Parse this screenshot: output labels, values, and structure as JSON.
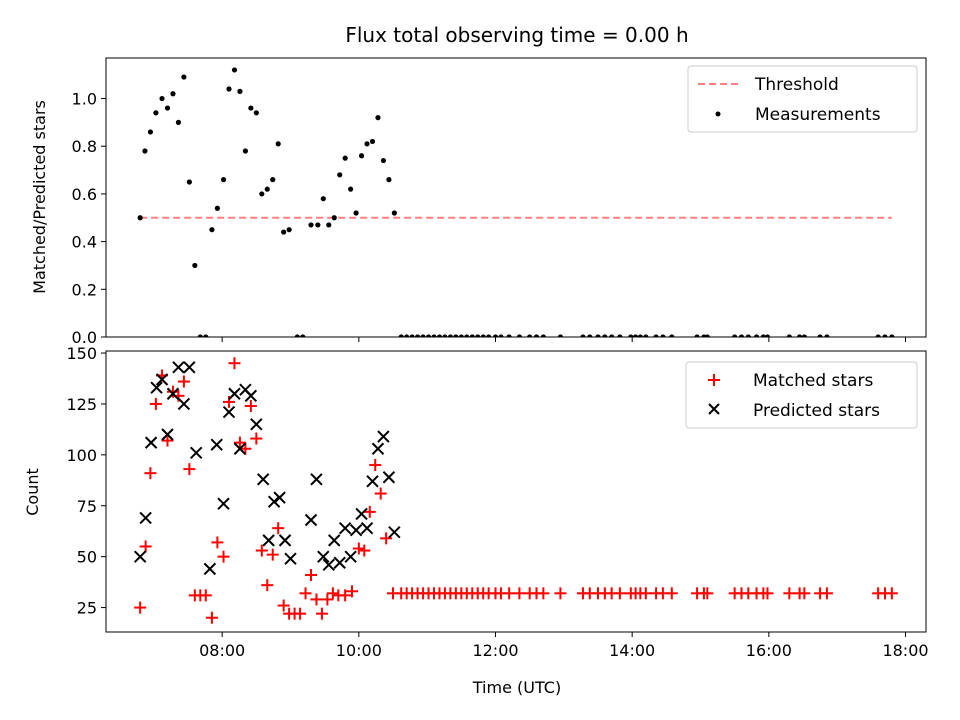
{
  "chart_data": [
    {
      "type": "scatter",
      "title": "Flux total observing time = 0.00 h",
      "ylabel": "Matched/Predicted stars",
      "ylim": [
        0.0,
        1.17
      ],
      "xlim_hours": [
        6.3,
        18.3
      ],
      "yticks": [
        0.0,
        0.2,
        0.4,
        0.6,
        0.8,
        1.0
      ],
      "ytick_labels": [
        "0.0",
        "0.2",
        "0.4",
        "0.6",
        "0.8",
        "1.0"
      ],
      "threshold": {
        "name": "Threshold",
        "y": 0.5,
        "x_range": [
          6.8,
          17.8
        ],
        "color": "#ff7f7f",
        "style": "dashed"
      },
      "series": [
        {
          "name": "Measurements",
          "color": "#000000",
          "marker": "dot",
          "points": [
            [
              6.8,
              0.5
            ],
            [
              6.87,
              0.78
            ],
            [
              6.95,
              0.86
            ],
            [
              7.03,
              0.94
            ],
            [
              7.12,
              1.0
            ],
            [
              7.2,
              0.96
            ],
            [
              7.28,
              1.02
            ],
            [
              7.36,
              0.9
            ],
            [
              7.44,
              1.09
            ],
            [
              7.52,
              0.65
            ],
            [
              7.6,
              0.3
            ],
            [
              7.68,
              0.0
            ],
            [
              7.76,
              0.0
            ],
            [
              7.85,
              0.45
            ],
            [
              7.93,
              0.54
            ],
            [
              8.02,
              0.66
            ],
            [
              8.1,
              1.04
            ],
            [
              8.18,
              1.12
            ],
            [
              8.26,
              1.03
            ],
            [
              8.34,
              0.78
            ],
            [
              8.42,
              0.96
            ],
            [
              8.5,
              0.94
            ],
            [
              8.58,
              0.6
            ],
            [
              8.66,
              0.62
            ],
            [
              8.74,
              0.66
            ],
            [
              8.82,
              0.81
            ],
            [
              8.9,
              0.44
            ],
            [
              8.98,
              0.45
            ],
            [
              9.1,
              0.0
            ],
            [
              9.18,
              0.0
            ],
            [
              9.3,
              0.47
            ],
            [
              9.4,
              0.47
            ],
            [
              9.48,
              0.58
            ],
            [
              9.56,
              0.47
            ],
            [
              9.64,
              0.5
            ],
            [
              9.72,
              0.68
            ],
            [
              9.8,
              0.75
            ],
            [
              9.88,
              0.62
            ],
            [
              9.96,
              0.52
            ],
            [
              10.04,
              0.76
            ],
            [
              10.12,
              0.81
            ],
            [
              10.2,
              0.82
            ],
            [
              10.28,
              0.92
            ],
            [
              10.36,
              0.74
            ],
            [
              10.44,
              0.66
            ],
            [
              10.52,
              0.52
            ],
            [
              10.62,
              0.0
            ],
            [
              10.7,
              0.0
            ],
            [
              10.78,
              0.0
            ],
            [
              10.86,
              0.0
            ],
            [
              10.94,
              0.0
            ],
            [
              11.02,
              0.0
            ],
            [
              11.1,
              0.0
            ],
            [
              11.18,
              0.0
            ],
            [
              11.26,
              0.0
            ],
            [
              11.34,
              0.0
            ],
            [
              11.42,
              0.0
            ],
            [
              11.5,
              0.0
            ],
            [
              11.58,
              0.0
            ],
            [
              11.66,
              0.0
            ],
            [
              11.74,
              0.0
            ],
            [
              11.82,
              0.0
            ],
            [
              11.9,
              0.0
            ],
            [
              12.0,
              0.0
            ],
            [
              12.08,
              0.0
            ],
            [
              12.2,
              0.0
            ],
            [
              12.35,
              0.0
            ],
            [
              12.5,
              0.0
            ],
            [
              12.6,
              0.0
            ],
            [
              12.7,
              0.0
            ],
            [
              12.95,
              0.0
            ],
            [
              13.28,
              0.0
            ],
            [
              13.38,
              0.0
            ],
            [
              13.5,
              0.0
            ],
            [
              13.6,
              0.0
            ],
            [
              13.7,
              0.0
            ],
            [
              13.82,
              0.0
            ],
            [
              13.98,
              0.0
            ],
            [
              14.05,
              0.0
            ],
            [
              14.12,
              0.0
            ],
            [
              14.2,
              0.0
            ],
            [
              14.35,
              0.0
            ],
            [
              14.45,
              0.0
            ],
            [
              14.58,
              0.0
            ],
            [
              14.95,
              0.0
            ],
            [
              15.05,
              0.0
            ],
            [
              15.1,
              0.0
            ],
            [
              15.5,
              0.0
            ],
            [
              15.6,
              0.0
            ],
            [
              15.7,
              0.0
            ],
            [
              15.82,
              0.0
            ],
            [
              15.92,
              0.0
            ],
            [
              15.98,
              0.0
            ],
            [
              16.3,
              0.0
            ],
            [
              16.45,
              0.0
            ],
            [
              16.52,
              0.0
            ],
            [
              16.75,
              0.0
            ],
            [
              16.85,
              0.0
            ],
            [
              17.6,
              0.0
            ],
            [
              17.7,
              0.0
            ],
            [
              17.8,
              0.0
            ]
          ]
        }
      ],
      "legend": {
        "location": "upper right",
        "entries": [
          "Threshold",
          "Measurements"
        ]
      }
    },
    {
      "type": "scatter",
      "xlabel": "Time (UTC)",
      "ylabel": "Count",
      "ylim": [
        13,
        151
      ],
      "xlim_hours": [
        6.3,
        18.3
      ],
      "yticks": [
        25,
        50,
        75,
        100,
        125,
        150
      ],
      "ytick_labels": [
        "25",
        "50",
        "75",
        "100",
        "125",
        "150"
      ],
      "xticks_hours": [
        8,
        10,
        12,
        14,
        16,
        18
      ],
      "xtick_labels": [
        "08:00",
        "10:00",
        "12:00",
        "14:00",
        "16:00",
        "18:00"
      ],
      "series": [
        {
          "name": "Matched stars",
          "color": "#ff0000",
          "marker": "plus",
          "points": [
            [
              6.8,
              25
            ],
            [
              6.88,
              55
            ],
            [
              6.95,
              91
            ],
            [
              7.03,
              125
            ],
            [
              7.12,
              139
            ],
            [
              7.2,
              107
            ],
            [
              7.28,
              131
            ],
            [
              7.36,
              129
            ],
            [
              7.44,
              136
            ],
            [
              7.52,
              93
            ],
            [
              7.6,
              31
            ],
            [
              7.68,
              31
            ],
            [
              7.76,
              31
            ],
            [
              7.85,
              20
            ],
            [
              7.93,
              57
            ],
            [
              8.02,
              50
            ],
            [
              8.1,
              126
            ],
            [
              8.18,
              145
            ],
            [
              8.26,
              106
            ],
            [
              8.34,
              103
            ],
            [
              8.42,
              124
            ],
            [
              8.5,
              108
            ],
            [
              8.58,
              53
            ],
            [
              8.66,
              36
            ],
            [
              8.74,
              51
            ],
            [
              8.82,
              64
            ],
            [
              8.9,
              26
            ],
            [
              8.98,
              22
            ],
            [
              9.06,
              22
            ],
            [
              9.14,
              22
            ],
            [
              9.22,
              32
            ],
            [
              9.3,
              41
            ],
            [
              9.38,
              29
            ],
            [
              9.46,
              22
            ],
            [
              9.54,
              29
            ],
            [
              9.62,
              32
            ],
            [
              9.7,
              31
            ],
            [
              9.8,
              31
            ],
            [
              9.9,
              33
            ],
            [
              10.0,
              54
            ],
            [
              10.08,
              53
            ],
            [
              10.16,
              72
            ],
            [
              10.24,
              95
            ],
            [
              10.32,
              81
            ],
            [
              10.4,
              59
            ],
            [
              10.5,
              32
            ],
            [
              10.62,
              32
            ],
            [
              10.7,
              32
            ],
            [
              10.78,
              32
            ],
            [
              10.86,
              32
            ],
            [
              10.94,
              32
            ],
            [
              11.02,
              32
            ],
            [
              11.1,
              32
            ],
            [
              11.18,
              32
            ],
            [
              11.26,
              32
            ],
            [
              11.34,
              32
            ],
            [
              11.42,
              32
            ],
            [
              11.5,
              32
            ],
            [
              11.58,
              32
            ],
            [
              11.66,
              32
            ],
            [
              11.74,
              32
            ],
            [
              11.82,
              32
            ],
            [
              11.9,
              32
            ],
            [
              12.0,
              32
            ],
            [
              12.08,
              32
            ],
            [
              12.2,
              32
            ],
            [
              12.35,
              32
            ],
            [
              12.5,
              32
            ],
            [
              12.6,
              32
            ],
            [
              12.7,
              32
            ],
            [
              12.95,
              32
            ],
            [
              13.28,
              32
            ],
            [
              13.38,
              32
            ],
            [
              13.5,
              32
            ],
            [
              13.6,
              32
            ],
            [
              13.7,
              32
            ],
            [
              13.82,
              32
            ],
            [
              13.98,
              32
            ],
            [
              14.05,
              32
            ],
            [
              14.12,
              32
            ],
            [
              14.2,
              32
            ],
            [
              14.35,
              32
            ],
            [
              14.45,
              32
            ],
            [
              14.58,
              32
            ],
            [
              14.95,
              32
            ],
            [
              15.05,
              32
            ],
            [
              15.1,
              32
            ],
            [
              15.5,
              32
            ],
            [
              15.6,
              32
            ],
            [
              15.7,
              32
            ],
            [
              15.82,
              32
            ],
            [
              15.92,
              32
            ],
            [
              15.98,
              32
            ],
            [
              16.3,
              32
            ],
            [
              16.45,
              32
            ],
            [
              16.52,
              32
            ],
            [
              16.75,
              32
            ],
            [
              16.85,
              32
            ],
            [
              17.6,
              32
            ],
            [
              17.7,
              32
            ],
            [
              17.8,
              32
            ]
          ]
        },
        {
          "name": "Predicted stars",
          "color": "#000000",
          "marker": "x",
          "points": [
            [
              6.8,
              50
            ],
            [
              6.88,
              69
            ],
            [
              6.96,
              106
            ],
            [
              7.04,
              133
            ],
            [
              7.12,
              137
            ],
            [
              7.2,
              110
            ],
            [
              7.28,
              130
            ],
            [
              7.36,
              143
            ],
            [
              7.44,
              125
            ],
            [
              7.52,
              143
            ],
            [
              7.62,
              101
            ],
            [
              7.82,
              44
            ],
            [
              7.92,
              105
            ],
            [
              8.02,
              76
            ],
            [
              8.1,
              121
            ],
            [
              8.18,
              130
            ],
            [
              8.26,
              103
            ],
            [
              8.34,
              132
            ],
            [
              8.42,
              129
            ],
            [
              8.5,
              115
            ],
            [
              8.6,
              88
            ],
            [
              8.68,
              58
            ],
            [
              8.76,
              77
            ],
            [
              8.84,
              79
            ],
            [
              8.92,
              58
            ],
            [
              9.0,
              49
            ],
            [
              9.3,
              68
            ],
            [
              9.38,
              88
            ],
            [
              9.48,
              50
            ],
            [
              9.56,
              46
            ],
            [
              9.64,
              58
            ],
            [
              9.72,
              47
            ],
            [
              9.8,
              64
            ],
            [
              9.88,
              50
            ],
            [
              9.96,
              63
            ],
            [
              10.04,
              71
            ],
            [
              10.12,
              64
            ],
            [
              10.2,
              87
            ],
            [
              10.28,
              103
            ],
            [
              10.36,
              109
            ],
            [
              10.44,
              89
            ],
            [
              10.52,
              62
            ]
          ]
        }
      ],
      "legend": {
        "location": "upper right",
        "entries": [
          "Matched stars",
          "Predicted stars"
        ]
      }
    }
  ]
}
